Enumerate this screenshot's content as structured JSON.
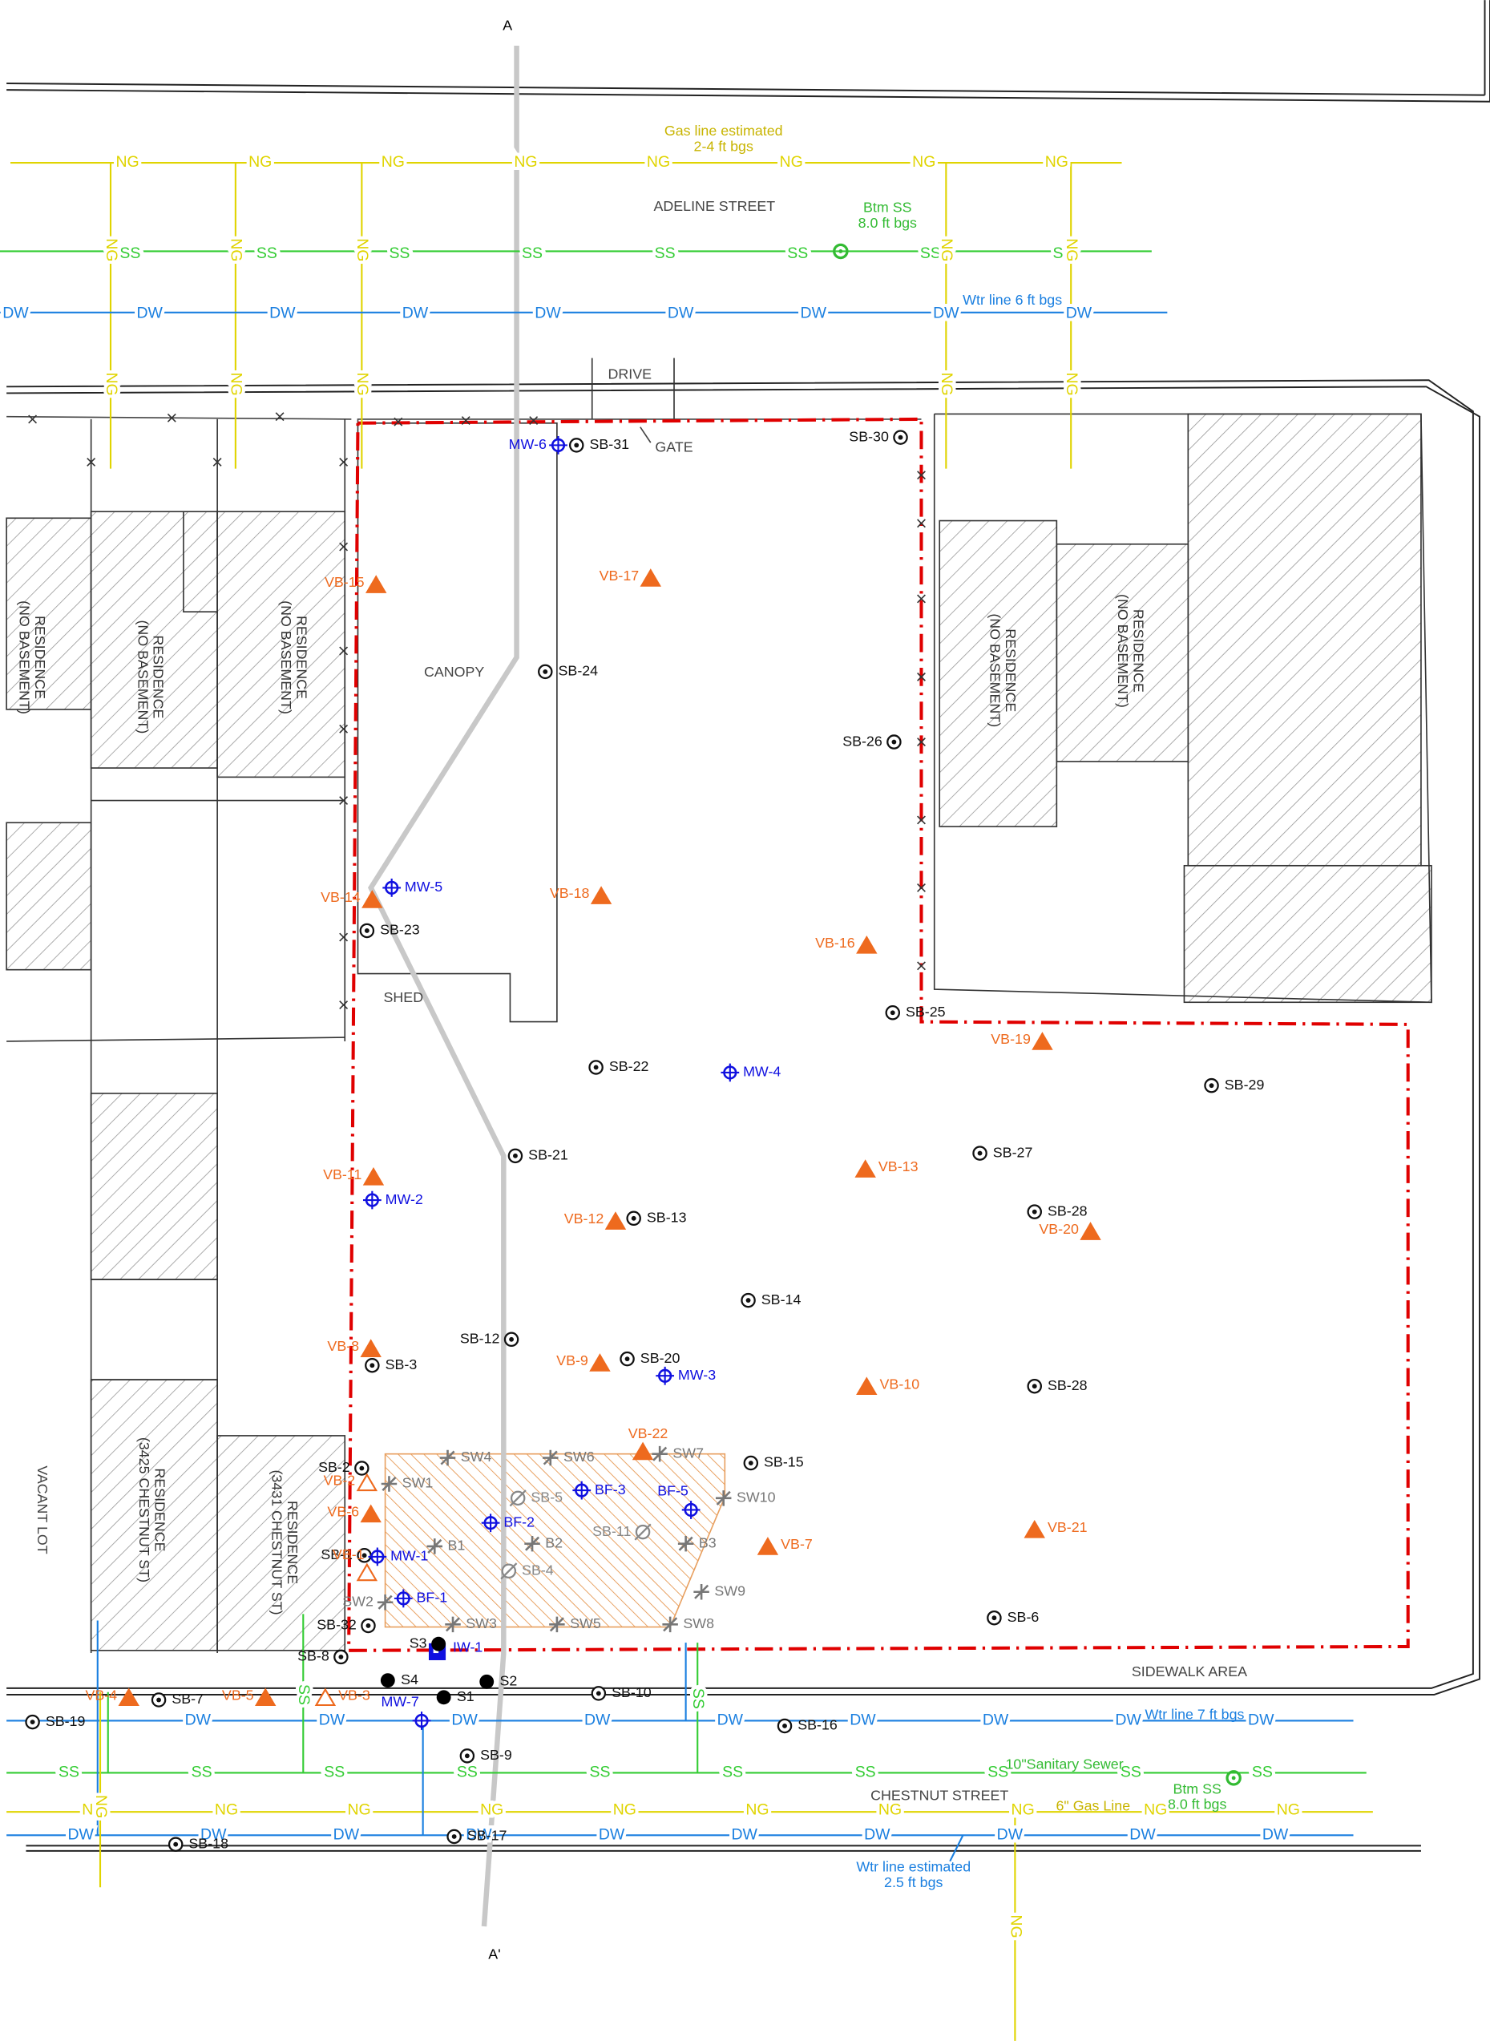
{
  "section_line": {
    "start": "A",
    "end": "A'"
  },
  "streets": [
    "ADELINE STREET",
    "CHESTNUT STREET"
  ],
  "features": [
    "DRIVE",
    "GATE",
    "CANOPY",
    "SHED",
    "SIDEWALK AREA",
    "VACANT LOT"
  ],
  "buildings": [
    {
      "lines": [
        "RESIDENCE",
        "(NO BASEMENT)"
      ]
    },
    {
      "lines": [
        "RESIDENCE",
        "(NO BASEMENT)"
      ]
    },
    {
      "lines": [
        "RESIDENCE",
        "(NO BASEMENT)"
      ]
    },
    {
      "lines": [
        "RESIDENCE",
        "(NO BASEMENT)"
      ]
    },
    {
      "lines": [
        "RESIDENCE",
        "(NO BASEMENT)"
      ]
    },
    {
      "lines": [
        "RESIDENCE",
        "(3425 CHESTNUT ST)"
      ]
    },
    {
      "lines": [
        "RESIDENCE",
        "(3431 CHESTNUT ST)"
      ]
    }
  ],
  "utilities": [
    {
      "label": "NG"
    },
    {
      "label": "SS"
    },
    {
      "label": "DW"
    }
  ],
  "annotations": [
    {
      "lines": [
        "Gas line estimated",
        "2-4 ft bgs"
      ]
    },
    {
      "lines": [
        "Btm SS",
        "8.0 ft bgs"
      ]
    },
    {
      "lines": [
        "Wtr line 6 ft bgs"
      ]
    },
    {
      "lines": [
        "Wtr line 7 ft bgs"
      ]
    },
    {
      "lines": [
        "10\"Sanitary Sewer"
      ]
    },
    {
      "lines": [
        "6\" Gas Line"
      ]
    },
    {
      "lines": [
        "Btm SS",
        "8.0 ft bgs"
      ]
    },
    {
      "lines": [
        "Wtr line estimated",
        "2.5 ft bgs"
      ]
    }
  ],
  "soil_borings": [
    "SB-30",
    "SB-31",
    "SB-24",
    "SB-26",
    "SB-23",
    "SB-25",
    "SB-22",
    "SB-29",
    "SB-21",
    "SB-27",
    "SB-28",
    "SB-13",
    "SB-14",
    "SB-12",
    "SB-20",
    "SB-3",
    "SB-28",
    "SB-15",
    "SB-2",
    "SB-1",
    "SB-32",
    "SB-6",
    "SB-8",
    "SB-7",
    "SB-10",
    "SB-19",
    "SB-16",
    "SB-9",
    "SB-17",
    "SB-18"
  ],
  "former_borings": [
    "SB-5",
    "SB-11",
    "SB-4"
  ],
  "wells": [
    "MW-6",
    "MW-5",
    "MW-4",
    "MW-2",
    "MW-3",
    "MW-1",
    "MW-7",
    "BF-3",
    "BF-2",
    "BF-5",
    "BF-1"
  ],
  "injection_wells": [
    "IW-1"
  ],
  "vapor_borings": [
    "VB-15",
    "VB-17",
    "VB-14",
    "VB-18",
    "VB-16",
    "VB-19",
    "VB-11",
    "VB-13",
    "VB-12",
    "VB-20",
    "VB-8",
    "VB-9",
    "VB-10",
    "VB-22",
    "VB-2",
    "VB-6",
    "VB-7",
    "VB-21",
    "VB-1",
    "VB-4",
    "VB-5",
    "VB-3"
  ],
  "soil_gas_points": [
    "SW4",
    "SW6",
    "SW7",
    "SW1",
    "SW10",
    "B1",
    "B2",
    "B3",
    "SW9",
    "SW2",
    "SW3",
    "SW5",
    "SW8"
  ],
  "surface_samples": [
    "S3",
    "S4",
    "S2",
    "S1"
  ]
}
